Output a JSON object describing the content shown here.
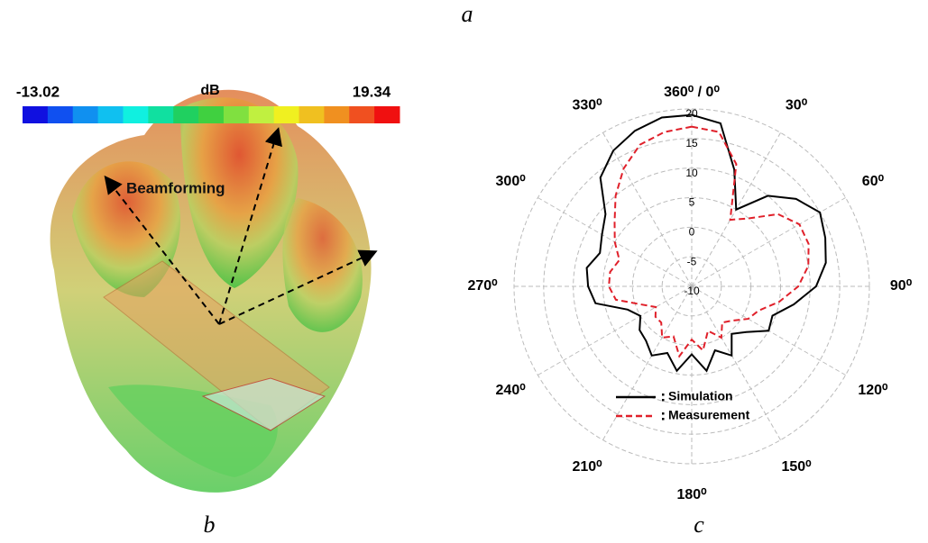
{
  "figure_labels": {
    "top": "a",
    "left": "b",
    "right": "c"
  },
  "colorbar": {
    "min": -13.02,
    "unit": "dB",
    "max": 19.34
  },
  "annotation": "Beamforming",
  "chart_data": {
    "type": "polar",
    "x": [
      0,
      10,
      20,
      30,
      40,
      50,
      60,
      70,
      80,
      90,
      100,
      110,
      120,
      130,
      140,
      150,
      160,
      170,
      180,
      190,
      200,
      210,
      220,
      230,
      240,
      250,
      260,
      270,
      280,
      290,
      300,
      310,
      320,
      330,
      340,
      350
    ],
    "series": [
      {
        "name": "Simulation",
        "color": "#000000",
        "dash": "solid",
        "values": [
          19,
          18,
          11,
          5,
          10,
          13,
          15,
          14,
          13,
          11,
          7.5,
          4.5,
          5,
          2,
          0.5,
          3.5,
          1.5,
          4.5,
          1.5,
          4.5,
          2,
          3.5,
          2,
          1.5,
          0,
          1.5,
          6.5,
          7.5,
          8,
          6.5,
          7.5,
          9,
          14,
          16.5,
          18,
          19
        ]
      },
      {
        "name": "Measurement",
        "color": "#e0202a",
        "dash": "dashed",
        "values": [
          17,
          16.5,
          12,
          3,
          5,
          9,
          11,
          11,
          10,
          8,
          5,
          2,
          1,
          -1,
          -2,
          0,
          -2,
          1,
          -1,
          2,
          -1,
          0,
          -2,
          -2,
          -3,
          -1,
          3,
          4,
          4,
          3,
          5,
          7,
          10,
          13,
          15.5,
          16.5
        ]
      }
    ],
    "xticks": [
      {
        "value": 0,
        "label": "360⁰ / 0⁰"
      },
      {
        "value": 30,
        "label": "30⁰"
      },
      {
        "value": 60,
        "label": "60⁰"
      },
      {
        "value": 90,
        "label": "90⁰"
      },
      {
        "value": 120,
        "label": "120⁰"
      },
      {
        "value": 150,
        "label": "150⁰"
      },
      {
        "value": 180,
        "label": "180⁰"
      },
      {
        "value": 210,
        "label": "210⁰"
      },
      {
        "value": 240,
        "label": "240⁰"
      },
      {
        "value": 270,
        "label": "270⁰"
      },
      {
        "value": 300,
        "label": "300⁰"
      },
      {
        "value": 330,
        "label": "330⁰"
      }
    ],
    "ylim": [
      -10,
      20
    ],
    "yticks": [
      20,
      15,
      10,
      5,
      0,
      -5,
      -10
    ],
    "grid": true
  }
}
